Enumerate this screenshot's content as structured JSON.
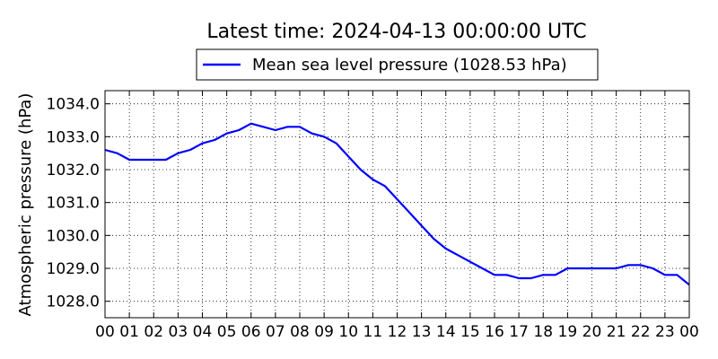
{
  "chart_data": {
    "type": "line",
    "title": "Latest time: 2024-04-13 00:00:00 UTC",
    "ylabel": "Atmospheric pressure (hPa)",
    "xlabel": "",
    "xlim": [
      0,
      24
    ],
    "ylim": [
      1027.5,
      1034.4
    ],
    "yticks": [
      1028.0,
      1029.0,
      1030.0,
      1031.0,
      1032.0,
      1033.0,
      1034.0
    ],
    "ytick_labels": [
      "1028.0",
      "1029.0",
      "1030.0",
      "1031.0",
      "1032.0",
      "1033.0",
      "1034.0"
    ],
    "xticks": [
      0,
      1,
      2,
      3,
      4,
      5,
      6,
      7,
      8,
      9,
      10,
      11,
      12,
      13,
      14,
      15,
      16,
      17,
      18,
      19,
      20,
      21,
      22,
      23,
      24
    ],
    "xtick_labels": [
      "00",
      "01",
      "02",
      "03",
      "04",
      "05",
      "06",
      "07",
      "08",
      "09",
      "10",
      "11",
      "12",
      "13",
      "14",
      "15",
      "16",
      "17",
      "18",
      "19",
      "20",
      "21",
      "22",
      "23",
      "00"
    ],
    "grid": true,
    "legend_position": "top-center",
    "series": [
      {
        "name": "Mean sea level pressure (1028.53 hPa)",
        "color": "#0000ff",
        "x": [
          0,
          0.5,
          1,
          1.5,
          2,
          2.5,
          3,
          3.5,
          4,
          4.5,
          5,
          5.5,
          6,
          6.5,
          7,
          7.5,
          8,
          8.5,
          9,
          9.5,
          10,
          10.5,
          11,
          11.5,
          12,
          12.5,
          13,
          13.5,
          14,
          14.5,
          15,
          15.5,
          16,
          16.5,
          17,
          17.5,
          18,
          18.5,
          19,
          19.5,
          20,
          20.5,
          21,
          21.5,
          22,
          22.5,
          23,
          23.5,
          24
        ],
        "values": [
          1032.6,
          1032.5,
          1032.3,
          1032.3,
          1032.3,
          1032.3,
          1032.5,
          1032.6,
          1032.8,
          1032.9,
          1033.1,
          1033.2,
          1033.4,
          1033.3,
          1033.2,
          1033.3,
          1033.3,
          1033.1,
          1033.0,
          1032.8,
          1032.4,
          1032.0,
          1031.7,
          1031.5,
          1031.1,
          1030.7,
          1030.3,
          1029.9,
          1029.6,
          1029.4,
          1029.2,
          1029.0,
          1028.8,
          1028.8,
          1028.7,
          1028.7,
          1028.8,
          1028.8,
          1029.0,
          1029.0,
          1029.0,
          1029.0,
          1029.0,
          1029.1,
          1029.1,
          1029.0,
          1028.8,
          1028.8,
          1028.5
        ]
      }
    ]
  }
}
